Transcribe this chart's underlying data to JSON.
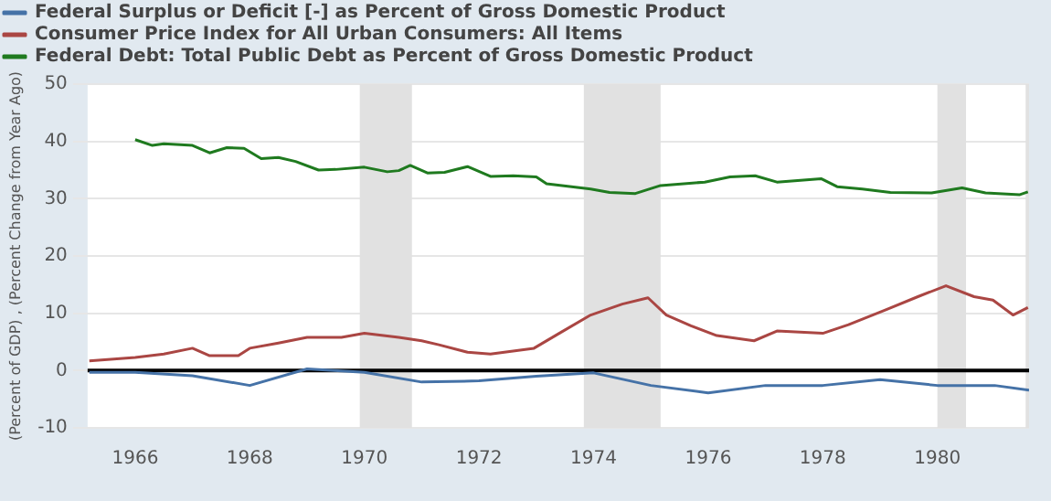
{
  "chart_data": {
    "type": "line",
    "ylabel": "(Percent of GDP) , (Percent Change from Year Ago)",
    "xlim": [
      1965.17,
      1981.6
    ],
    "xticks": [
      1966,
      1968,
      1970,
      1972,
      1974,
      1976,
      1978,
      1980
    ],
    "ylim": [
      -10,
      50
    ],
    "yticks": [
      -10,
      0,
      10,
      20,
      30,
      40,
      50
    ],
    "grid": "y",
    "legend": "top left",
    "marker": "none",
    "line_style": "solid",
    "series": [
      {
        "name": "Federal Surplus or Deficit [-] as Percent of Gross Domestic Product",
        "color": "#4572a7",
        "x": [
          1965.2,
          1966,
          1967,
          1968,
          1969,
          1970,
          1971,
          1972,
          1973,
          1974,
          1975,
          1976,
          1977,
          1978,
          1979,
          1980,
          1981,
          1981.6
        ],
        "values": [
          -0.3,
          -0.3,
          -0.9,
          -2.6,
          0.3,
          -0.3,
          -2.0,
          -1.8,
          -1.0,
          -0.4,
          -2.6,
          -3.9,
          -2.6,
          -2.6,
          -1.6,
          -2.6,
          -2.6,
          -3.4
        ]
      },
      {
        "name": "Consumer Price Index for All Urban Consumers: All Items",
        "color": "#aa4643",
        "x": [
          1965.2,
          1966,
          1966.5,
          1967,
          1967.3,
          1967.8,
          1968,
          1968.5,
          1969,
          1969.6,
          1970,
          1970.6,
          1971,
          1971.3,
          1971.8,
          1972.2,
          1972.96,
          1973.4,
          1973.95,
          1974.5,
          1974.95,
          1975.27,
          1975.7,
          1976.15,
          1976.8,
          1977.2,
          1978,
          1978.45,
          1979.1,
          1979.66,
          1980.15,
          1980.64,
          1980.97,
          1981.32,
          1981.58
        ],
        "values": [
          1.7,
          2.3,
          2.9,
          3.9,
          2.6,
          2.6,
          3.9,
          4.8,
          5.8,
          5.8,
          6.5,
          5.8,
          5.2,
          4.5,
          3.2,
          2.9,
          3.9,
          6.5,
          9.7,
          11.6,
          12.7,
          9.7,
          7.8,
          6.1,
          5.2,
          6.9,
          6.5,
          8.0,
          10.6,
          12.9,
          14.8,
          12.9,
          12.3,
          9.7,
          11.0
        ]
      },
      {
        "name": "Federal Debt: Total Public Debt as Percent of Gross Domestic Product",
        "color": "#1f7a1f",
        "x": [
          1966,
          1966.3,
          1966.5,
          1967,
          1967.3,
          1967.6,
          1967.9,
          1968.2,
          1968.5,
          1968.8,
          1969.2,
          1969.5,
          1970,
          1970.4,
          1970.6,
          1970.8,
          1971.1,
          1971.4,
          1971.8,
          1972.2,
          1972.6,
          1973.0,
          1973.18,
          1973.95,
          1974.28,
          1974.73,
          1975.17,
          1975.94,
          1976.38,
          1976.82,
          1977.2,
          1977.97,
          1978.25,
          1978.69,
          1979.18,
          1979.9,
          1980.43,
          1980.84,
          1981.44,
          1981.58
        ],
        "values": [
          40.3,
          39.3,
          39.6,
          39.3,
          38.0,
          38.9,
          38.8,
          37.0,
          37.2,
          36.5,
          35.0,
          35.1,
          35.5,
          34.7,
          34.9,
          35.8,
          34.5,
          34.6,
          35.6,
          33.9,
          34.0,
          33.8,
          32.6,
          31.7,
          31.1,
          30.9,
          32.3,
          32.9,
          33.8,
          34.0,
          32.9,
          33.5,
          32.1,
          31.7,
          31.1,
          31.0,
          31.9,
          31.0,
          30.7,
          31.2
        ]
      }
    ],
    "ref_lines": [
      {
        "axis": "y",
        "value": 0,
        "color": "#000000"
      }
    ],
    "bands": [
      {
        "axis": "x",
        "from": 1969.92,
        "to": 1970.83,
        "color": "#e1e1e1"
      },
      {
        "axis": "x",
        "from": 1973.83,
        "to": 1975.17,
        "color": "#e1e1e1"
      },
      {
        "axis": "x",
        "from": 1980.0,
        "to": 1980.5,
        "color": "#e1e1e1"
      },
      {
        "axis": "x",
        "from": 1981.54,
        "to": 1981.6,
        "color": "#e1e1e1"
      }
    ]
  }
}
